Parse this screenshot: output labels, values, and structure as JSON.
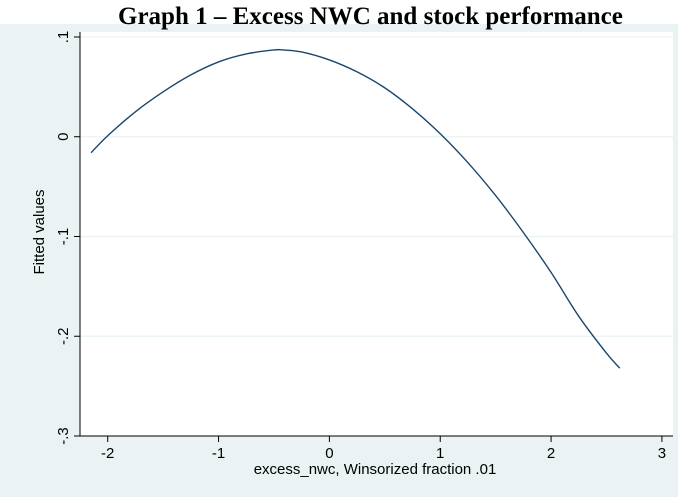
{
  "chart_data": {
    "type": "line",
    "title": "Graph 1 – Excess NWC and stock performance",
    "xlabel": "excess_nwc, Winsorized fraction .01",
    "ylabel": "Fitted values",
    "xlim": [
      -2.25,
      3.1
    ],
    "ylim": [
      -0.3,
      0.105
    ],
    "x_ticks": [
      -2,
      -1,
      0,
      1,
      2,
      3
    ],
    "x_tick_labels": [
      "-2",
      "-1",
      "0",
      "1",
      "2",
      "3"
    ],
    "y_ticks": [
      0.1,
      0,
      -0.1,
      -0.2,
      -0.3
    ],
    "y_tick_labels": [
      ".1",
      "0",
      "-.1",
      "-.2",
      "-.3"
    ],
    "grid": true,
    "legend": "none",
    "colors": {
      "line": "#1a476f",
      "background": "#eaf2f3",
      "plot_area": "#ffffff",
      "grid": "#eaf2f3"
    },
    "series": [
      {
        "x": [
          -2.15,
          -2.0,
          -1.75,
          -1.5,
          -1.25,
          -1.0,
          -0.75,
          -0.5,
          -0.42,
          -0.25,
          0.0,
          0.25,
          0.5,
          0.75,
          1.0,
          1.25,
          1.5,
          1.75,
          2.0,
          2.25,
          2.5,
          2.62
        ],
        "y": [
          -0.016,
          0.001,
          0.025,
          0.045,
          0.062,
          0.075,
          0.083,
          0.087,
          0.087,
          0.085,
          0.077,
          0.065,
          0.049,
          0.028,
          0.003,
          -0.026,
          -0.059,
          -0.096,
          -0.136,
          -0.18,
          -0.217,
          -0.232
        ]
      }
    ]
  }
}
